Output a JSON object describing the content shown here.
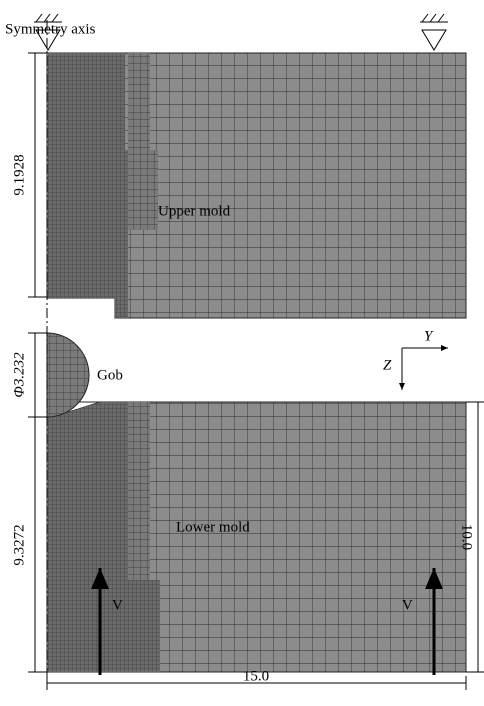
{
  "symmetry_axis": "Symmetry axis",
  "upper_mold": {
    "label": "Upper mold",
    "height": "9.1928"
  },
  "gob": {
    "label": "Gob",
    "diameter": "Φ3.232"
  },
  "lower_mold": {
    "label": "Lower mold",
    "height": "9.3272",
    "total_height": "10.0"
  },
  "width": "15.0",
  "axes": {
    "y": "Y",
    "z": "Z"
  },
  "velocity": [
    "V",
    "V"
  ]
}
